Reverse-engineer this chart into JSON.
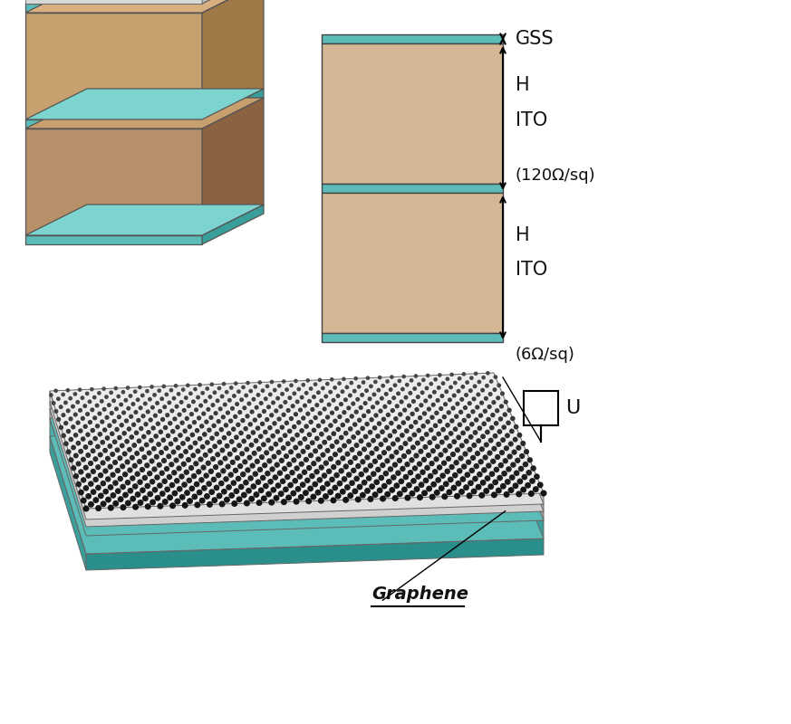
{
  "background_color": "#ffffff",
  "teal_color": "#5bbcb8",
  "teal_dark": "#3a9e9a",
  "teal_light": "#7dd4cf",
  "sand_light": "#d4b896",
  "sand_front": "#c4a07a",
  "sand_side": "#a07850",
  "sand_top": "#d8b890",
  "sand_front2": "#b89060",
  "sand_side2": "#8b6340",
  "sand_top2": "#c8a870",
  "arrow_color": "#111111",
  "text_color": "#111111",
  "gss_label": "GSS",
  "h_label": "H",
  "ito_label": "ITO",
  "ito1_label": "(120Ω/sq)",
  "ito2_label": "(6Ω/sq)",
  "u_label": "U",
  "graphene_label": "Graphene"
}
